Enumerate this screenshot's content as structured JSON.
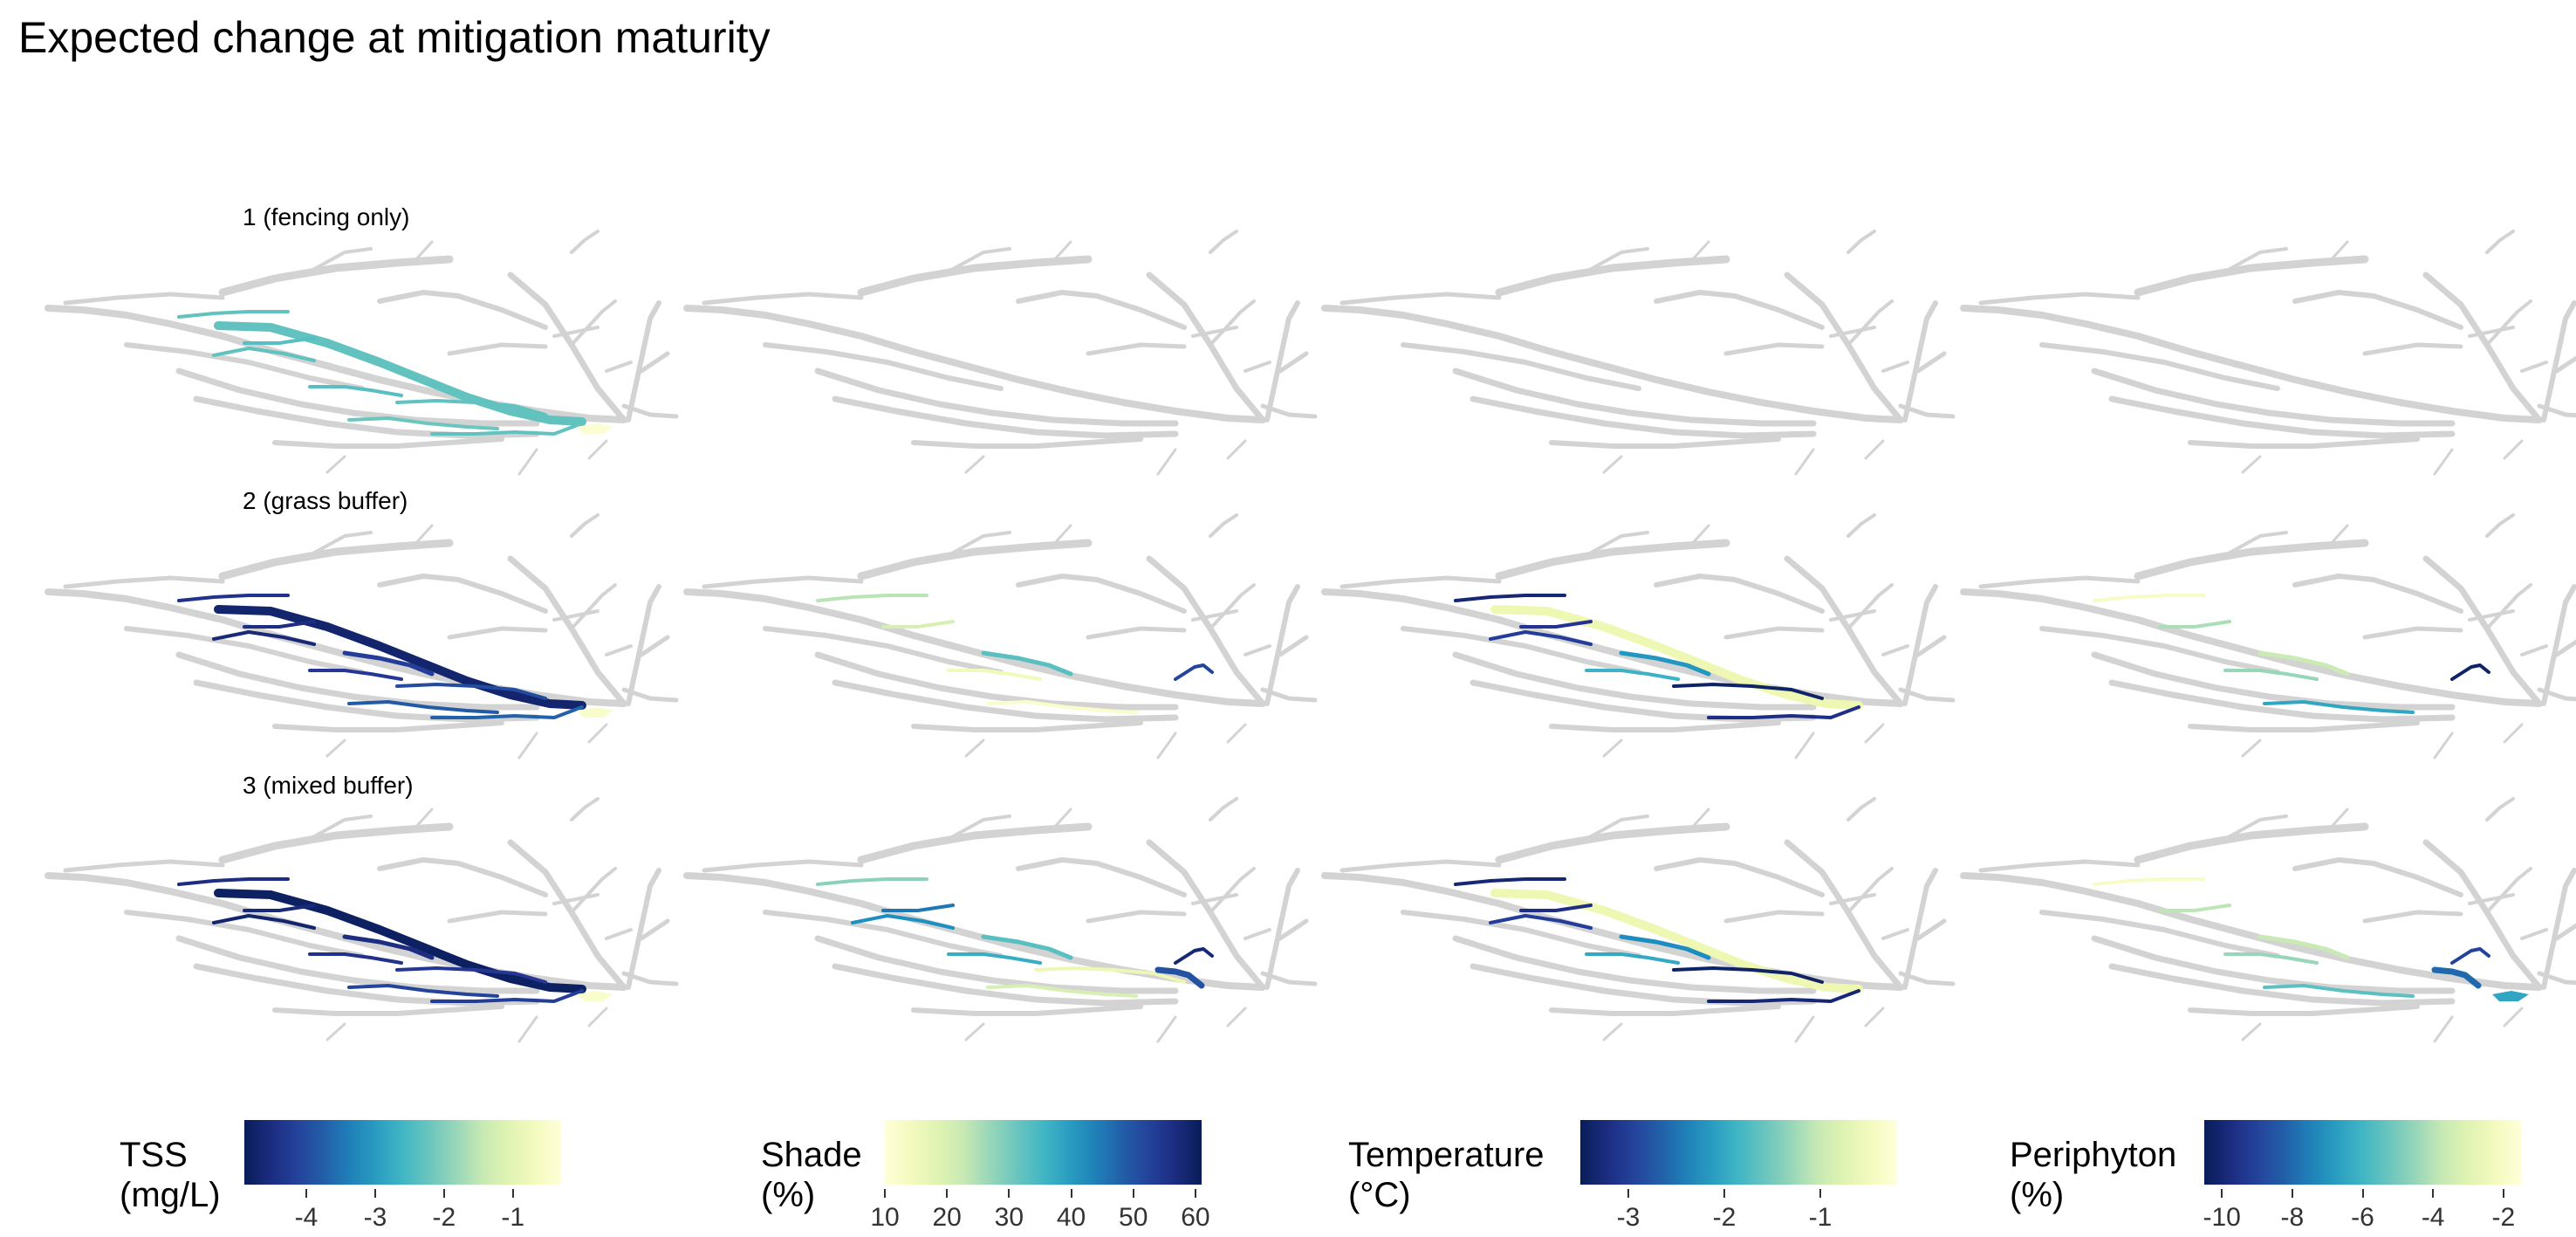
{
  "title": "Expected change at mitigation maturity",
  "rows": [
    {
      "label": "1 (fencing only)"
    },
    {
      "label": "2 (grass buffer)"
    },
    {
      "label": "3 (mixed buffer)"
    }
  ],
  "base_network_color": "#d3d3d3",
  "legends": [
    {
      "name": "tss",
      "title_line1": "TSS",
      "title_line2": "(mg/L)",
      "scale_min": -4.9,
      "scale_max": -0.3,
      "reverse": true,
      "ticks": [
        {
          "value": -4,
          "label": "-4"
        },
        {
          "value": -3,
          "label": "-3"
        },
        {
          "value": -2,
          "label": "-2"
        },
        {
          "value": -1,
          "label": "-1"
        }
      ]
    },
    {
      "name": "shade",
      "title_line1": "Shade",
      "title_line2": "(%)",
      "scale_min": 10,
      "scale_max": 61,
      "reverse": false,
      "ticks": [
        {
          "value": 10,
          "label": "10"
        },
        {
          "value": 20,
          "label": "20"
        },
        {
          "value": 30,
          "label": "30"
        },
        {
          "value": 40,
          "label": "40"
        },
        {
          "value": 50,
          "label": "50"
        },
        {
          "value": 60,
          "label": "60"
        }
      ]
    },
    {
      "name": "temperature",
      "title_line1": "Temperature",
      "title_line2": "(°C)",
      "scale_min": -3.5,
      "scale_max": -0.2,
      "reverse": true,
      "ticks": [
        {
          "value": -3,
          "label": "-3"
        },
        {
          "value": -2,
          "label": "-2"
        },
        {
          "value": -1,
          "label": "-1"
        }
      ]
    },
    {
      "name": "periphyton",
      "title_line1": "Periphyton",
      "title_line2": "(%)",
      "scale_min": -10.5,
      "scale_max": -1.5,
      "reverse": true,
      "ticks": [
        {
          "value": -10,
          "label": "-10"
        },
        {
          "value": -8,
          "label": "-8"
        },
        {
          "value": -6,
          "label": "-6"
        },
        {
          "value": -4,
          "label": "-4"
        },
        {
          "value": -2,
          "label": "-2"
        }
      ]
    }
  ],
  "colormap": [
    "#081d58",
    "#253494",
    "#225ea8",
    "#1d91c0",
    "#41b6c4",
    "#7fcdbb",
    "#c7e9b4",
    "#edf8b1",
    "#ffffd9"
  ],
  "panels": [
    {
      "row": 0,
      "col": 0,
      "highlights": [
        {
          "reach": "main",
          "value": -2.3
        },
        {
          "reach": "w1",
          "value": -2.3
        },
        {
          "reach": "w2",
          "value": -2.4
        },
        {
          "reach": "w3",
          "value": -2.3
        },
        {
          "reach": "w4",
          "value": -2.4
        },
        {
          "reach": "w6",
          "value": -2.2
        },
        {
          "reach": "w7",
          "value": -2.3
        },
        {
          "reach": "w8",
          "value": -2.3
        },
        {
          "reach": "out",
          "value": -0.4
        }
      ]
    },
    {
      "row": 0,
      "col": 1,
      "highlights": []
    },
    {
      "row": 0,
      "col": 2,
      "highlights": []
    },
    {
      "row": 0,
      "col": 3,
      "highlights": []
    },
    {
      "row": 1,
      "col": 0,
      "highlights": [
        {
          "reach": "main",
          "value": -4.7
        },
        {
          "reach": "w1",
          "value": -4.4
        },
        {
          "reach": "w2",
          "value": -4.5
        },
        {
          "reach": "w3",
          "value": -4.6
        },
        {
          "reach": "w4",
          "value": -4.3
        },
        {
          "reach": "w5",
          "value": -4.2
        },
        {
          "reach": "w6",
          "value": -3.8
        },
        {
          "reach": "w7",
          "value": -4.0
        },
        {
          "reach": "w8",
          "value": -3.7
        },
        {
          "reach": "out",
          "value": -0.5
        }
      ]
    },
    {
      "row": 1,
      "col": 1,
      "highlights": [
        {
          "reach": "w1",
          "value": 24
        },
        {
          "reach": "w2",
          "value": 20
        },
        {
          "reach": "w4",
          "value": 15
        },
        {
          "reach": "w5",
          "value": 33
        },
        {
          "reach": "w6",
          "value": 12
        },
        {
          "reach": "c1",
          "value": 52
        }
      ]
    },
    {
      "row": 1,
      "col": 2,
      "highlights": [
        {
          "reach": "main",
          "value": -0.6
        },
        {
          "reach": "w1",
          "value": -3.3
        },
        {
          "reach": "w2",
          "value": -3.1
        },
        {
          "reach": "w3",
          "value": -3.0
        },
        {
          "reach": "w4",
          "value": -1.9
        },
        {
          "reach": "w5",
          "value": -2.2
        },
        {
          "reach": "w7",
          "value": -3.4
        },
        {
          "reach": "w8",
          "value": -3.2
        }
      ]
    },
    {
      "row": 1,
      "col": 3,
      "highlights": [
        {
          "reach": "w1",
          "value": -2.0
        },
        {
          "reach": "w2",
          "value": -4.2
        },
        {
          "reach": "w4",
          "value": -4.5
        },
        {
          "reach": "w5",
          "value": -3.6
        },
        {
          "reach": "w6",
          "value": -6.5
        },
        {
          "reach": "c1",
          "value": -10.2
        }
      ]
    },
    {
      "row": 2,
      "col": 0,
      "highlights": [
        {
          "reach": "main",
          "value": -4.8
        },
        {
          "reach": "w1",
          "value": -4.5
        },
        {
          "reach": "w2",
          "value": -4.6
        },
        {
          "reach": "w3",
          "value": -4.7
        },
        {
          "reach": "w4",
          "value": -4.4
        },
        {
          "reach": "w5",
          "value": -4.5
        },
        {
          "reach": "w6",
          "value": -4.1
        },
        {
          "reach": "w7",
          "value": -4.3
        },
        {
          "reach": "w8",
          "value": -4.2
        },
        {
          "reach": "out",
          "value": -0.5
        }
      ]
    },
    {
      "row": 2,
      "col": 1,
      "highlights": [
        {
          "reach": "w1",
          "value": 28
        },
        {
          "reach": "w2",
          "value": 45
        },
        {
          "reach": "w3",
          "value": 42
        },
        {
          "reach": "w4",
          "value": 37
        },
        {
          "reach": "w5",
          "value": 33
        },
        {
          "reach": "w6",
          "value": 20
        },
        {
          "reach": "w7",
          "value": 16
        },
        {
          "reach": "c1",
          "value": 58
        },
        {
          "reach": "c2",
          "value": 50
        }
      ]
    },
    {
      "row": 2,
      "col": 2,
      "highlights": [
        {
          "reach": "main",
          "value": -0.6
        },
        {
          "reach": "w1",
          "value": -3.3
        },
        {
          "reach": "w2",
          "value": -3.2
        },
        {
          "reach": "w3",
          "value": -3.0
        },
        {
          "reach": "w4",
          "value": -2.0
        },
        {
          "reach": "w5",
          "value": -2.3
        },
        {
          "reach": "w7",
          "value": -3.4
        },
        {
          "reach": "w8",
          "value": -3.3
        }
      ]
    },
    {
      "row": 2,
      "col": 3,
      "highlights": [
        {
          "reach": "w1",
          "value": -2.0
        },
        {
          "reach": "w2",
          "value": -3.9
        },
        {
          "reach": "w4",
          "value": -4.5
        },
        {
          "reach": "w5",
          "value": -3.7
        },
        {
          "reach": "w6",
          "value": -5.5
        },
        {
          "reach": "c1",
          "value": -9.0
        },
        {
          "reach": "c2",
          "value": -8.0
        },
        {
          "reach": "out",
          "value": -6.5
        }
      ]
    }
  ]
}
